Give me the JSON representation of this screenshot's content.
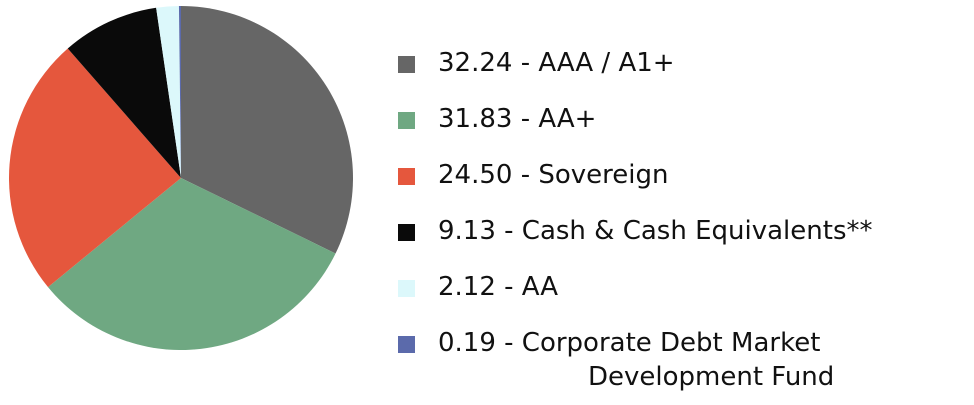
{
  "chart_data": {
    "type": "pie",
    "categories": [
      "32.24 - AAA / A1+",
      "31.83 - AA+",
      "24.50 - Sovereign",
      "9.13 - Cash & Cash Equivalents**",
      "2.12 - AA",
      "0.19 - Corporate Debt Market Development Fund"
    ],
    "values": [
      32.24,
      31.83,
      24.5,
      9.13,
      2.12,
      0.19
    ],
    "colors": [
      "#666666",
      "#6fa882",
      "#e5573d",
      "#0a0a0a",
      "#dcf8fb",
      "#5b6aab"
    ]
  }
}
